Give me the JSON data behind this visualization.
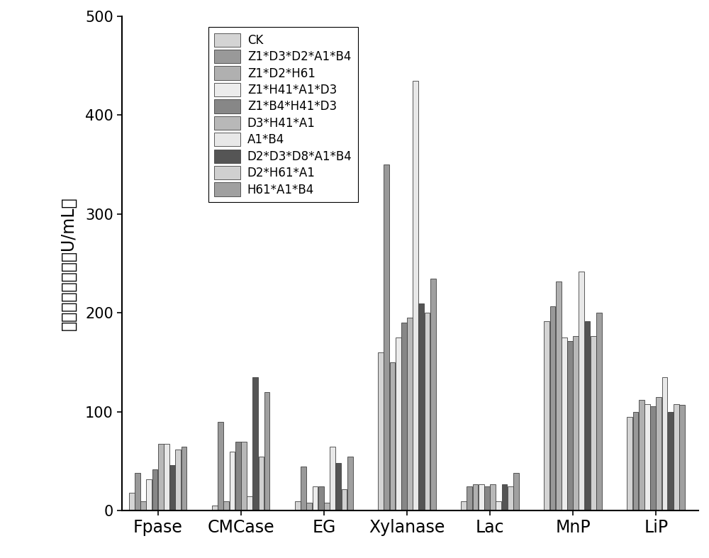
{
  "categories": [
    "Fpase",
    "CMCase",
    "EG",
    "Xylanase",
    "Lac",
    "MnP",
    "LiP"
  ],
  "series_labels": [
    "CK",
    "Z1*D3*D2*A1*B4",
    "Z1*D2*H61",
    "Z1*H41*A1*D3",
    "Z1*B4*H41*D3",
    "D3*H41*A1",
    "A1*B4",
    "D2*D3*D8*A1*B4",
    "D2*H61*A1",
    "H61*A1*B4"
  ],
  "colors": [
    "#d4d4d4",
    "#999999",
    "#b0b0b0",
    "#ececec",
    "#878787",
    "#b8b8b8",
    "#e8e8e8",
    "#555555",
    "#d0d0d0",
    "#a0a0a0"
  ],
  "data": {
    "Fpase": [
      18,
      38,
      10,
      32,
      42,
      68,
      68,
      46,
      62,
      65
    ],
    "CMCase": [
      5,
      90,
      10,
      60,
      70,
      70,
      15,
      135,
      55,
      120
    ],
    "EG": [
      10,
      45,
      8,
      25,
      25,
      8,
      65,
      48,
      22,
      55
    ],
    "Xylanase": [
      160,
      350,
      150,
      175,
      190,
      195,
      435,
      210,
      200,
      235
    ],
    "Lac": [
      10,
      25,
      27,
      27,
      25,
      27,
      10,
      27,
      25,
      38
    ],
    "MnP": [
      192,
      207,
      232,
      175,
      172,
      177,
      242,
      192,
      177,
      200
    ],
    "LiP": [
      95,
      100,
      112,
      108,
      106,
      115,
      135,
      100,
      108,
      107
    ]
  },
  "ylim": [
    0,
    500
  ],
  "yticks": [
    0,
    100,
    200,
    300,
    400,
    500
  ],
  "ylabel": "木质纤维素酶活（U/mL）",
  "figsize": [
    10.0,
    7.87
  ],
  "dpi": 100
}
